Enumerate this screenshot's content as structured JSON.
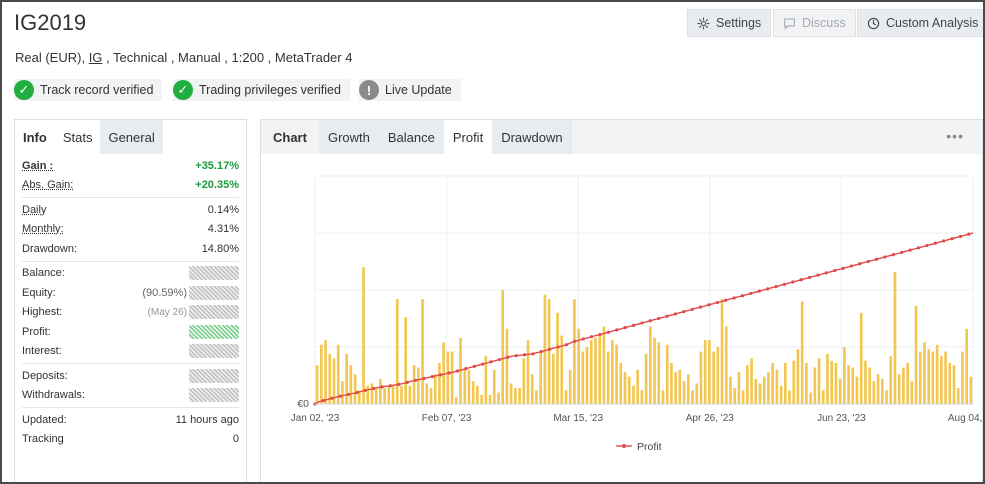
{
  "header": {
    "title": "IG2019",
    "subtitle_pre": "Real (EUR), ",
    "subtitle_broker": "IG",
    "subtitle_post": " , Technical , Manual , 1:200 , MetaTrader 4"
  },
  "toolbar": {
    "settings": "Settings",
    "discuss": "Discuss",
    "custom_analysis": "Custom Analysis"
  },
  "badges": {
    "track": "Track record verified",
    "privileges": "Trading privileges verified",
    "live": "Live Update"
  },
  "left_tabs": [
    "Info",
    "Stats",
    "General"
  ],
  "stats": {
    "gain_label": "Gain :",
    "gain_value": "+35.17%",
    "abs_gain_label": "Abs. Gain:",
    "abs_gain_value": "+20.35%",
    "daily_label": "Daily",
    "daily_value": "0.14%",
    "monthly_label": "Monthly:",
    "monthly_value": "4.31%",
    "drawdown_label": "Drawdown:",
    "drawdown_value": "14.80%",
    "balance_label": "Balance:",
    "equity_label": "Equity:",
    "equity_pct": "(90.59%)",
    "highest_label": "Highest:",
    "highest_date": "(May 26)",
    "profit_label": "Profit:",
    "interest_label": "Interest:",
    "deposits_label": "Deposits:",
    "withdrawals_label": "Withdrawals:",
    "updated_label": "Updated:",
    "updated_value": "11 hours ago",
    "tracking_label": "Tracking",
    "tracking_value": "0"
  },
  "chart_tabs": {
    "label": "Chart",
    "growth": "Growth",
    "balance": "Balance",
    "profit": "Profit",
    "drawdown": "Drawdown"
  },
  "more_icon": "more-horizontal-icon",
  "colors": {
    "bar": "#f3c64f",
    "line": "#e14a4a",
    "gain_green": "#1a9a3a",
    "badge_green": "#1fae3f"
  },
  "chart_data": {
    "type": "bar",
    "x_tick_labels": [
      "Jan 02, '23",
      "Feb 07, '23",
      "Mar 15, '23",
      "Apr 26, '23",
      "Jun 23, '23",
      "Aug 04, '23"
    ],
    "y_tick_labels": [
      "€0"
    ],
    "legend": [
      "Profit"
    ],
    "legend_position": "bottom",
    "bar_values": [
      0.17,
      0.26,
      0.28,
      0.22,
      0.2,
      0.26,
      0.1,
      0.22,
      0.17,
      0.13,
      0.06,
      0.6,
      0.08,
      0.09,
      0.07,
      0.11,
      0.07,
      0.08,
      0.08,
      0.46,
      0.08,
      0.38,
      0.08,
      0.17,
      0.16,
      0.46,
      0.09,
      0.07,
      0.13,
      0.18,
      0.27,
      0.23,
      0.23,
      0.03,
      0.29,
      0.15,
      0.15,
      0.1,
      0.08,
      0.04,
      0.21,
      0.04,
      0.15,
      0.05,
      0.5,
      0.33,
      0.09,
      0.07,
      0.07,
      0.2,
      0.28,
      0.13,
      0.06,
      0.23,
      0.48,
      0.46,
      0.22,
      0.4,
      0.3,
      0.06,
      0.15,
      0.46,
      0.33,
      0.23,
      0.25,
      0.28,
      0.29,
      0.3,
      0.34,
      0.23,
      0.28,
      0.26,
      0.18,
      0.14,
      0.12,
      0.08,
      0.15,
      0.06,
      0.22,
      0.34,
      0.29,
      0.27,
      0.06,
      0.26,
      0.18,
      0.14,
      0.15,
      0.1,
      0.13,
      0.06,
      0.09,
      0.23,
      0.28,
      0.28,
      0.23,
      0.25,
      0.46,
      0.34,
      0.12,
      0.07,
      0.14,
      0.06,
      0.17,
      0.2,
      0.11,
      0.09,
      0.12,
      0.14,
      0.18,
      0.15,
      0.08,
      0.18,
      0.06,
      0.19,
      0.24,
      0.45,
      0.18,
      0.05,
      0.16,
      0.2,
      0.06,
      0.22,
      0.19,
      0.18,
      0.11,
      0.25,
      0.17,
      0.16,
      0.12,
      0.4,
      0.19,
      0.16,
      0.1,
      0.13,
      0.11,
      0.06,
      0.21,
      0.58,
      0.13,
      0.16,
      0.18,
      0.1,
      0.43,
      0.23,
      0.27,
      0.24,
      0.23,
      0.26,
      0.21,
      0.23,
      0.18,
      0.17,
      0.07,
      0.23,
      0.33,
      0.12
    ],
    "line_values": [
      0.0,
      0.01,
      0.015,
      0.02,
      0.025,
      0.03,
      0.034,
      0.038,
      0.042,
      0.046,
      0.05,
      0.055,
      0.06,
      0.064,
      0.068,
      0.072,
      0.075,
      0.078,
      0.08,
      0.083,
      0.086,
      0.09,
      0.095,
      0.1,
      0.104,
      0.108,
      0.112,
      0.116,
      0.12,
      0.124,
      0.128,
      0.132,
      0.136,
      0.14,
      0.145,
      0.15,
      0.155,
      0.16,
      0.165,
      0.17,
      0.175,
      0.18,
      0.185,
      0.19,
      0.195,
      0.2,
      0.205,
      0.21,
      0.212,
      0.214,
      0.216,
      0.218,
      0.22,
      0.225,
      0.23,
      0.235,
      0.24,
      0.245,
      0.25,
      0.255,
      0.26,
      0.268,
      0.275,
      0.28,
      0.285,
      0.29,
      0.295,
      0.3,
      0.305,
      0.31,
      0.315,
      0.32,
      0.325,
      0.33,
      0.335,
      0.34,
      0.345,
      0.35,
      0.355,
      0.36,
      0.365,
      0.37,
      0.375,
      0.38,
      0.385,
      0.39,
      0.395,
      0.4,
      0.405,
      0.41,
      0.415,
      0.42,
      0.425,
      0.43,
      0.435,
      0.44,
      0.445,
      0.45,
      0.455,
      0.46,
      0.465,
      0.47,
      0.475,
      0.48,
      0.485,
      0.49,
      0.495,
      0.5,
      0.505,
      0.51,
      0.515,
      0.52,
      0.525,
      0.53,
      0.535,
      0.54,
      0.545,
      0.55,
      0.555,
      0.56,
      0.565,
      0.57,
      0.575,
      0.58,
      0.585,
      0.59,
      0.595,
      0.6,
      0.605,
      0.61,
      0.615,
      0.62,
      0.625,
      0.63,
      0.635,
      0.64,
      0.645,
      0.65,
      0.655,
      0.66,
      0.665,
      0.67,
      0.675,
      0.68,
      0.685,
      0.69,
      0.695,
      0.7,
      0.705,
      0.71,
      0.715,
      0.72,
      0.725,
      0.73,
      0.735,
      0.74,
      0.745,
      0.75
    ]
  }
}
